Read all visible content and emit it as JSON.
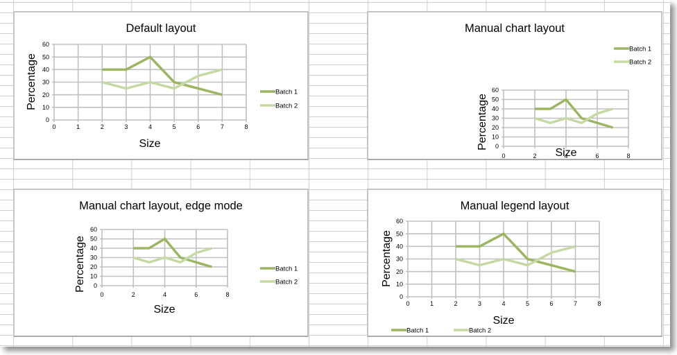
{
  "colors": {
    "batch1": "#9bb560",
    "batch2": "#c5d9a3",
    "grid": "#c0c0c0"
  },
  "series_legend": [
    "Batch 1",
    "Batch 2"
  ],
  "axis": {
    "xlabel": "Size",
    "ylabel": "Percentage"
  },
  "charts": [
    {
      "title": "Default layout"
    },
    {
      "title": "Manual chart layout"
    },
    {
      "title": "Manual chart layout, edge mode"
    },
    {
      "title": "Manual legend layout"
    }
  ],
  "chart_data": [
    {
      "type": "line",
      "title": "Default layout",
      "xlabel": "Size",
      "ylabel": "Percentage",
      "xlim": [
        0,
        8
      ],
      "ylim": [
        0,
        60
      ],
      "xticks": [
        0,
        1,
        2,
        3,
        4,
        5,
        6,
        7,
        8
      ],
      "yticks": [
        0,
        10,
        20,
        30,
        40,
        50,
        60
      ],
      "grid": true,
      "legend_position": "right",
      "x": [
        2,
        3,
        4,
        5,
        6,
        7
      ],
      "series": [
        {
          "name": "Batch 1",
          "values": [
            40,
            40,
            50,
            30,
            25,
            20
          ]
        },
        {
          "name": "Batch 2",
          "values": [
            30,
            25,
            30,
            25,
            35,
            40
          ]
        }
      ]
    },
    {
      "type": "line",
      "title": "Manual chart layout",
      "xlabel": "Size",
      "ylabel": "Percentage",
      "xlim": [
        0,
        8
      ],
      "ylim": [
        0,
        60
      ],
      "xticks": [
        0,
        2,
        4,
        6,
        8
      ],
      "yticks": [
        0,
        10,
        20,
        30,
        40,
        50,
        60
      ],
      "grid": true,
      "legend_position": "top-right",
      "x": [
        2,
        3,
        4,
        5,
        6,
        7
      ],
      "series": [
        {
          "name": "Batch 1",
          "values": [
            40,
            40,
            50,
            30,
            25,
            20
          ]
        },
        {
          "name": "Batch 2",
          "values": [
            30,
            25,
            30,
            25,
            35,
            40
          ]
        }
      ]
    },
    {
      "type": "line",
      "title": "Manual chart layout, edge mode",
      "xlabel": "Size",
      "ylabel": "Percentage",
      "xlim": [
        0,
        8
      ],
      "ylim": [
        0,
        60
      ],
      "xticks": [
        0,
        2,
        4,
        6,
        8
      ],
      "yticks": [
        0,
        10,
        20,
        30,
        40,
        50,
        60
      ],
      "grid": true,
      "legend_position": "right",
      "x": [
        2,
        3,
        4,
        5,
        6,
        7
      ],
      "series": [
        {
          "name": "Batch 1",
          "values": [
            40,
            40,
            50,
            30,
            25,
            20
          ]
        },
        {
          "name": "Batch 2",
          "values": [
            30,
            25,
            30,
            25,
            35,
            40
          ]
        }
      ]
    },
    {
      "type": "line",
      "title": "Manual legend layout",
      "xlabel": "Size",
      "ylabel": "Percentage",
      "xlim": [
        0,
        8
      ],
      "ylim": [
        0,
        60
      ],
      "xticks": [
        0,
        1,
        2,
        3,
        4,
        5,
        6,
        7,
        8
      ],
      "yticks": [
        0,
        10,
        20,
        30,
        40,
        50,
        60
      ],
      "grid": true,
      "legend_position": "bottom-left",
      "x": [
        2,
        3,
        4,
        5,
        6,
        7
      ],
      "series": [
        {
          "name": "Batch 1",
          "values": [
            40,
            40,
            50,
            30,
            25,
            20
          ]
        },
        {
          "name": "Batch 2",
          "values": [
            30,
            25,
            30,
            25,
            35,
            40
          ]
        }
      ]
    }
  ]
}
